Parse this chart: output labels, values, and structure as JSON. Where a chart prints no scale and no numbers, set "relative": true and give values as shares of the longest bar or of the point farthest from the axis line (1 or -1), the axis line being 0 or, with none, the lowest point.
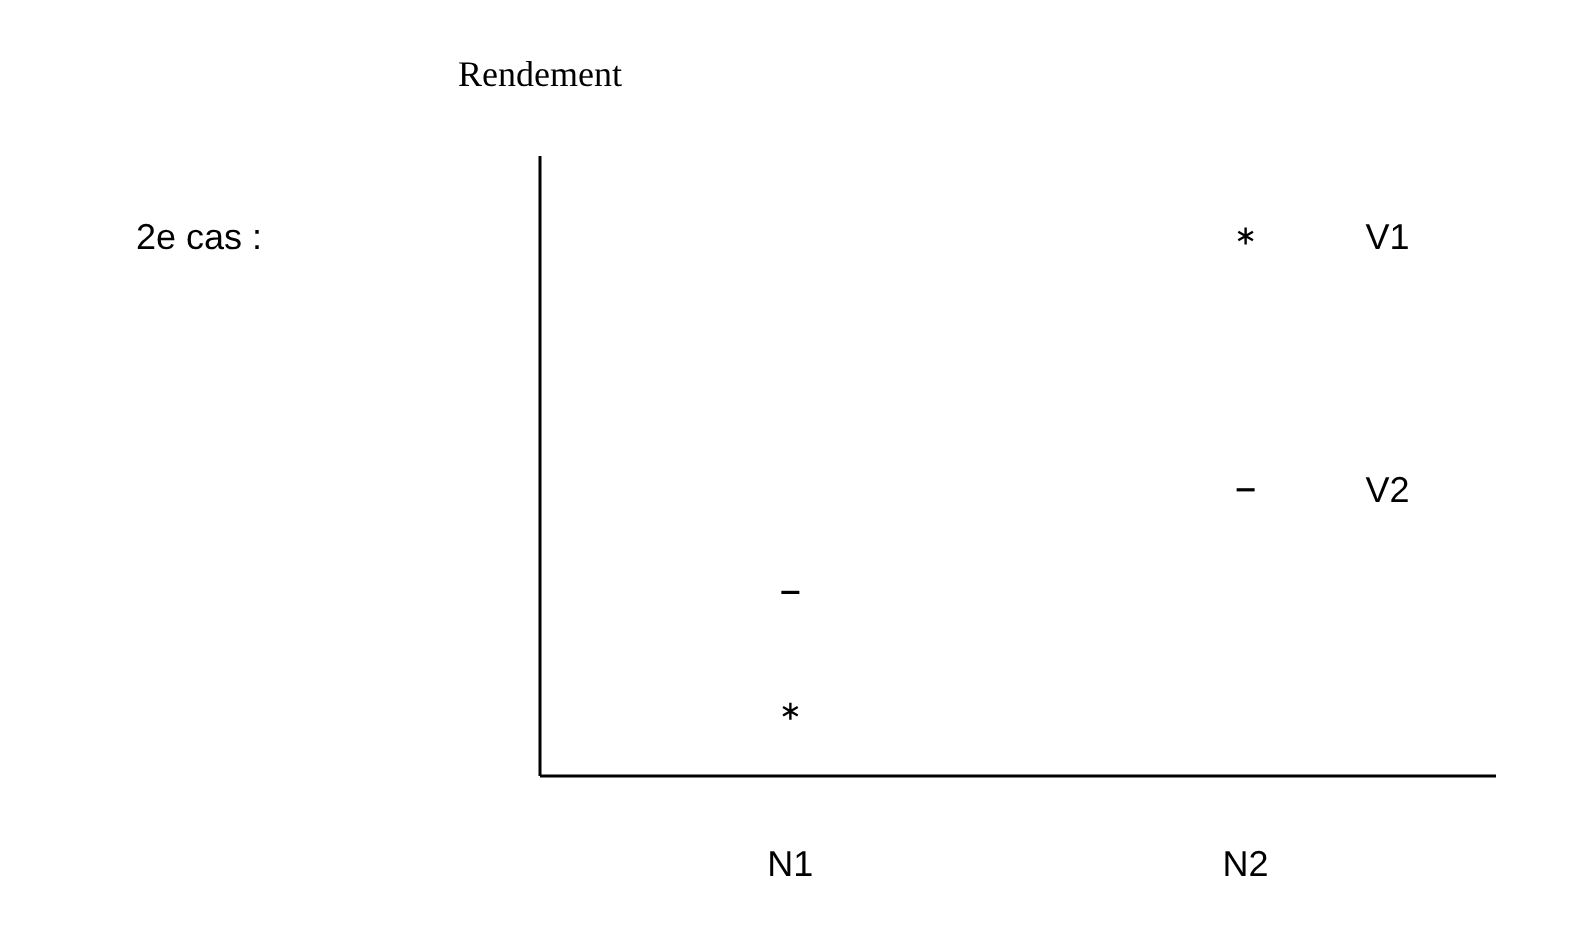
{
  "chart_data": {
    "type": "scatter",
    "relative": true,
    "ylabel": "Rendement",
    "categories": [
      "N1",
      "N2"
    ],
    "annotations": [
      "2e cas :"
    ],
    "series": [
      {
        "name": "V1",
        "color": "#000000",
        "marker": "cross",
        "values": [
          0.12,
          1
        ]
      },
      {
        "name": "V2",
        "color": "#000000",
        "values": [
          0.34,
          0.53
        ]
      }
    ]
  }
}
